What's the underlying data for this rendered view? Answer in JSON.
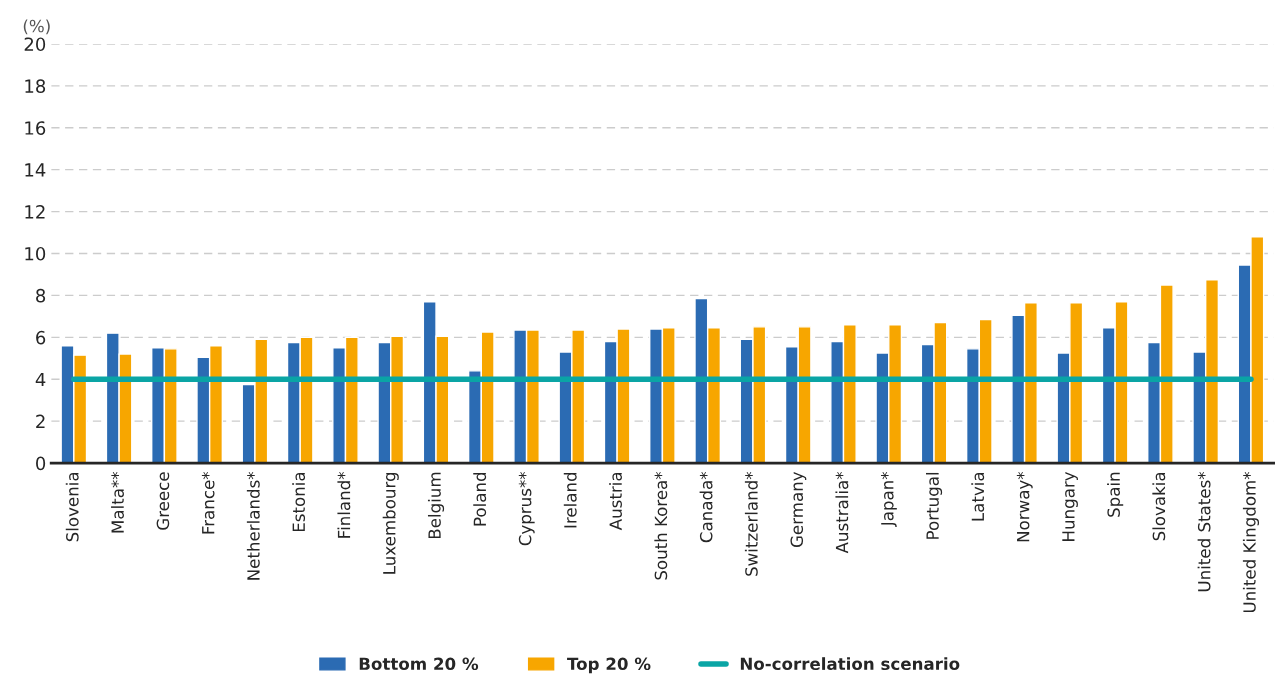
{
  "chart_data": {
    "type": "bar",
    "ylabel": "(%)",
    "categories": [
      "Slovenia",
      "Malta**",
      "Greece",
      "France*",
      "Netherlands*",
      "Estonia",
      "Finland*",
      "Luxembourg",
      "Belgium",
      "Poland",
      "Cyprus**",
      "Ireland",
      "Austria",
      "South Korea*",
      "Canada*",
      "Switzerland*",
      "Germany",
      "Australia*",
      "Japan*",
      "Portugal",
      "Latvia",
      "Norway*",
      "Hungary",
      "Spain",
      "Slovakia",
      "United States*",
      "United Kingdom*"
    ],
    "series": [
      {
        "name": "Bottom 20 %",
        "color": "#2b6bb3",
        "values": [
          5.6,
          6.2,
          5.5,
          5.05,
          3.75,
          5.75,
          5.5,
          5.75,
          7.7,
          4.4,
          6.35,
          5.3,
          5.8,
          6.4,
          7.85,
          5.9,
          5.55,
          5.8,
          5.25,
          5.65,
          5.45,
          7.05,
          5.25,
          6.45,
          5.75,
          5.3,
          9.45
        ]
      },
      {
        "name": "Top 20 %",
        "color": "#f7a600",
        "values": [
          5.15,
          5.2,
          5.45,
          5.6,
          5.9,
          6.0,
          6.0,
          6.05,
          6.05,
          6.25,
          6.35,
          6.35,
          6.4,
          6.45,
          6.45,
          6.5,
          6.5,
          6.6,
          6.6,
          6.7,
          6.85,
          7.65,
          7.65,
          7.7,
          8.5,
          8.75,
          10.8
        ]
      },
      {
        "name": "No-correlation scenario",
        "type": "line",
        "color": "#0aa5a5",
        "values": [
          4,
          4,
          4,
          4,
          4,
          4,
          4,
          4,
          4,
          4,
          4,
          4,
          4,
          4,
          4,
          4,
          4,
          4,
          4,
          4,
          4,
          4,
          4,
          4,
          4,
          4,
          4
        ]
      }
    ],
    "ylim": [
      0,
      20
    ],
    "yticks": [
      0,
      2,
      4,
      6,
      8,
      10,
      12,
      14,
      16,
      18,
      20
    ],
    "grid": "y",
    "legend": "bottom"
  }
}
